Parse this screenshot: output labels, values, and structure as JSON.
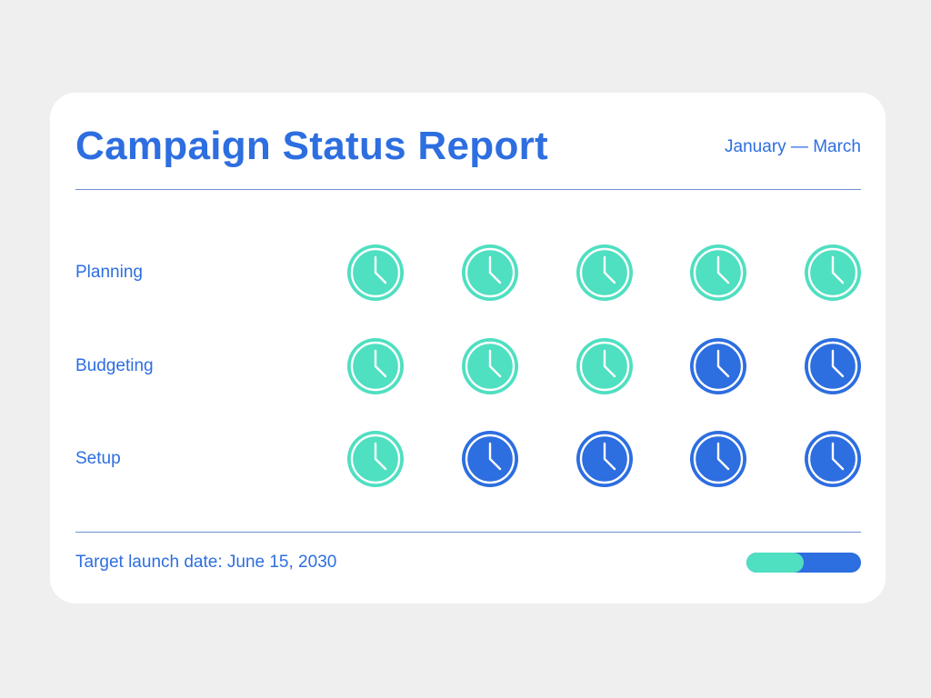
{
  "header": {
    "title": "Campaign Status Report",
    "period": "January — March"
  },
  "colors": {
    "done": "#4fdfc1",
    "pending": "#2d6ee0",
    "text": "#2d6ee0"
  },
  "rows": [
    {
      "label": "Planning",
      "statuses": [
        "done",
        "done",
        "done",
        "done",
        "done"
      ]
    },
    {
      "label": "Budgeting",
      "statuses": [
        "done",
        "done",
        "done",
        "pending",
        "pending"
      ]
    },
    {
      "label": "Setup",
      "statuses": [
        "done",
        "pending",
        "pending",
        "pending",
        "pending"
      ]
    }
  ],
  "icon": "clock-icon",
  "footer": {
    "launch_text": "Target launch date: June 15, 2030",
    "progress_fraction": 0.5
  }
}
